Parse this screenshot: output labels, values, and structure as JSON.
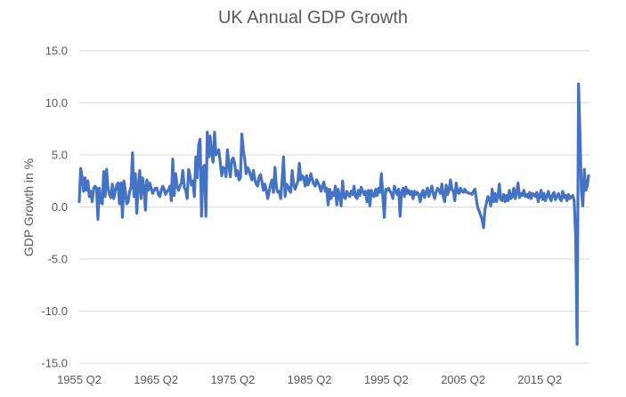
{
  "chart_data": {
    "type": "line",
    "title": "UK Annual GDP Growth",
    "xlabel": "",
    "ylabel": "GDP Growth in %",
    "ylim": [
      -15,
      15
    ],
    "yticks": [
      15,
      10,
      5,
      0,
      -5,
      -10,
      -15
    ],
    "ytick_labels": [
      "15.0",
      "10.0",
      "5.0",
      "0.0",
      "-5.0",
      "-10.0",
      "-15.0"
    ],
    "xtick_labels": [
      "1955 Q2",
      "1965 Q2",
      "1975 Q2",
      "1985 Q2",
      "1995 Q2",
      "2005 Q2",
      "2015 Q2"
    ],
    "xtick_positions_quarter_index": [
      0,
      40,
      80,
      120,
      160,
      200,
      240
    ],
    "x_start": "1955 Q2",
    "grid": true,
    "legend": "none",
    "color": "#4472C4",
    "series": [
      {
        "name": "UK Annual GDP Growth",
        "values": [
          0.5,
          3.7,
          2.9,
          1.5,
          2.8,
          1.6,
          2.5,
          1.0,
          1.5,
          0.5,
          1.8,
          2.0,
          1.8,
          -1.2,
          1.8,
          0.5,
          0.3,
          3.4,
          1.0,
          3.6,
          1.8,
          1.2,
          0.9,
          2.2,
          0.8,
          1.5,
          2.1,
          2.3,
          0.3,
          2.3,
          -1.0,
          2.5,
          1.6,
          0.3,
          0.5,
          1.5,
          1.9,
          5.2,
          1.0,
          3.2,
          -0.6,
          2.0,
          3.5,
          0.8,
          2.8,
          1.9,
          -0.3,
          2.6,
          1.6,
          2.3,
          1.8,
          1.3,
          1.6,
          1.8,
          1.8,
          1.2,
          1.0,
          1.6,
          2.0,
          1.7,
          1.2,
          1.5,
          1.6,
          2.0,
          0.6,
          4.6,
          1.1,
          3.2,
          2.0,
          1.6,
          2.0,
          2.3,
          3.5,
          1.9,
          1.6,
          0.8,
          3.6,
          3.0,
          2.1,
          2.5,
          1.0,
          4.8,
          2.8,
          6.0,
          6.5,
          -0.9,
          3.8,
          4.0,
          -0.9,
          7.2,
          4.8,
          6.8,
          5.0,
          4.3,
          7.2,
          5.0,
          5.2,
          5.5,
          4.2,
          3.0,
          3.8,
          3.7,
          2.9,
          5.5,
          4.0,
          2.9,
          4.5,
          4.7,
          4.2,
          3.0,
          3.5,
          2.6,
          2.8,
          7.0,
          5.5,
          4.6,
          3.2,
          3.8,
          3.5,
          3.0,
          2.6,
          3.5,
          2.7,
          2.2,
          2.0,
          2.9,
          3.1,
          2.4,
          1.6,
          2.2,
          1.6,
          0.8,
          1.5,
          2.2,
          2.6,
          1.4,
          3.8,
          1.9,
          1.4,
          1.5,
          0.8,
          2.6,
          4.8,
          1.0,
          2.2,
          2.0,
          1.6,
          1.4,
          3.5,
          2.2,
          1.7,
          2.1,
          2.5,
          4.2,
          2.6,
          3.0,
          2.8,
          2.0,
          3.0,
          2.1,
          2.5,
          3.2,
          2.6,
          2.2,
          2.0,
          2.6,
          2.3,
          2.0,
          1.5,
          2.0,
          2.4,
          1.5,
          1.8,
          0.2,
          1.7,
          0.8,
          1.4,
          1.1,
          2.0,
          0.2,
          1.7,
          1.0,
          0.1,
          2.5,
          1.0,
          0.8,
          1.5,
          1.2,
          1.0,
          1.5,
          1.2,
          2.0,
          1.0,
          0.8,
          1.6,
          1.1,
          1.9,
          1.5,
          1.2,
          1.5,
          0.5,
          1.6,
          0.1,
          1.6,
          1.1,
          1.0,
          1.7,
          1.1,
          1.8,
          1.4,
          3.2,
          1.0,
          -1.0,
          1.7,
          1.6,
          1.8,
          1.5,
          1.3,
          0.8,
          2.0,
          1.5,
          1.2,
          1.7,
          -0.9,
          1.4,
          1.8,
          1.0,
          1.9,
          1.3,
          1.6,
          1.2,
          1.5,
          0.8,
          1.5,
          1.2,
          1.4,
          1.2,
          0.5,
          1.3,
          1.6,
          0.9,
          1.4,
          1.8,
          1.0,
          1.5,
          2.0,
          1.3,
          0.8,
          1.4,
          1.8,
          1.6,
          1.3,
          2.2,
          1.0,
          0.5,
          2.1,
          1.2,
          1.6,
          2.6,
          1.7,
          1.5,
          0.6,
          2.3,
          1.4,
          1.3,
          1.8,
          1.5,
          1.4,
          1.7,
          1.4,
          1.4,
          1.3,
          1.3,
          1.2,
          1.5,
          1.7,
          0.7,
          -0.1,
          -0.4,
          -0.8,
          -1.2,
          -2.0,
          -0.2,
          0.4,
          1.0,
          0.8,
          0.1,
          1.7,
          0.5,
          1.3,
          0.5,
          1.0,
          2.2,
          0.7,
          0.6,
          1.2,
          0.5,
          1.1,
          0.6,
          1.6,
          0.8,
          1.0,
          1.8,
          0.8,
          1.4,
          2.3,
          0.9,
          1.3,
          1.1,
          1.6,
          1.0,
          1.2,
          0.9,
          1.4,
          0.8,
          1.3,
          1.2,
          1.0,
          1.4,
          0.5,
          1.1,
          1.6,
          0.7,
          1.3,
          0.6,
          1.0,
          1.5,
          0.9,
          0.6,
          1.2,
          1.4,
          0.7,
          1.0,
          1.3,
          0.8,
          0.6,
          1.5,
          0.9,
          1.1,
          0.6,
          1.2,
          0.8,
          1.0,
          1.1,
          0.6,
          -2.8,
          -13.2,
          11.8,
          7.0,
          1.5,
          0.1,
          3.6,
          1.6,
          2.0,
          3.0
        ]
      }
    ]
  }
}
